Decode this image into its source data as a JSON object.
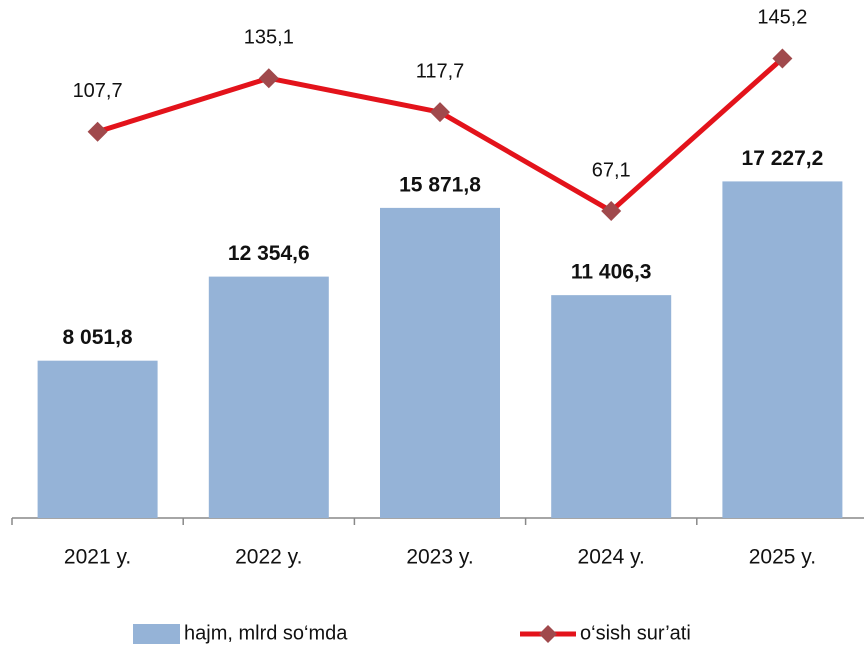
{
  "chart_data": {
    "type": "bar_line",
    "categories": [
      "2021 y.",
      "2022 y.",
      "2023 y.",
      "2024 y.",
      "2025 y."
    ],
    "series": [
      {
        "name": "hajm, mlrd so‘mda",
        "type": "bar",
        "color": "#95b3d7",
        "values": [
          8051.8,
          12354.6,
          15871.8,
          11406.3,
          17227.2
        ],
        "value_labels": [
          "8 051,8",
          "12 354,6",
          "15 871,8",
          "11 406,3",
          "17 227,2"
        ]
      },
      {
        "name": "o‘sish sur’ati",
        "type": "line",
        "axis": "y2",
        "color": "#e3131b",
        "marker_color": "#a0494c",
        "values": [
          107.7,
          135.1,
          117.7,
          67.1,
          145.2
        ],
        "value_labels": [
          "107,7",
          "135,1",
          "117,7",
          "67,1",
          "145,2"
        ]
      }
    ],
    "ylim": [
      0,
      26000
    ],
    "y2lim": [
      -90,
      170
    ],
    "legend": "bottom"
  }
}
